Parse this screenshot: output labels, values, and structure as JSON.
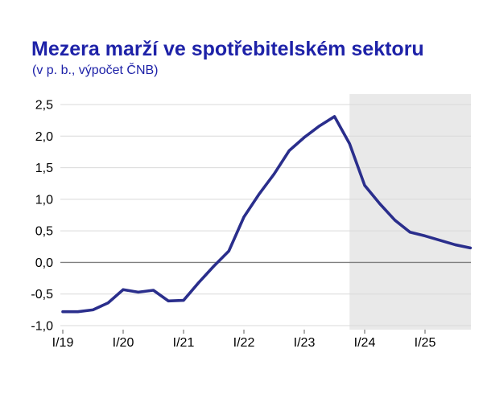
{
  "header": {
    "title": "Mezera marží ve spotřebitelském sektoru",
    "subtitle": "(v p. b., výpočet ČNB)"
  },
  "colors": {
    "title": "#1E22A8",
    "subtitle": "#1E22A8",
    "line": "#2A2E8C",
    "grid": "#D9D9D9",
    "zero_line": "#808080",
    "forecast_shade": "#E9E9E9",
    "axis_text": "#000000",
    "tick_mark": "#595959"
  },
  "chart_data": {
    "type": "line",
    "title": "Mezera marží ve spotřebitelském sektoru",
    "subtitle": "(v p. b., výpočet ČNB)",
    "xlabel": "",
    "ylabel": "",
    "grid": true,
    "legend": false,
    "ylim": [
      -1.0,
      2.5
    ],
    "ytick_step": 0.5,
    "x": [
      "I/19",
      "II/19",
      "III/19",
      "IV/19",
      "I/20",
      "II/20",
      "III/20",
      "IV/20",
      "I/21",
      "II/21",
      "III/21",
      "IV/21",
      "I/22",
      "II/22",
      "III/22",
      "IV/22",
      "I/23",
      "II/23",
      "III/23",
      "IV/23",
      "I/24",
      "II/24",
      "III/24",
      "IV/24",
      "I/25",
      "II/25",
      "III/25",
      "IV/25"
    ],
    "series": [
      {
        "name": "Mezera marží ve spotřebitelském sektoru (v p. b.)",
        "values": [
          -0.78,
          -0.78,
          -0.75,
          -0.64,
          -0.43,
          -0.47,
          -0.44,
          -0.61,
          -0.6,
          -0.32,
          -0.06,
          0.18,
          0.72,
          1.08,
          1.4,
          1.77,
          1.98,
          2.16,
          2.31,
          1.88,
          1.22,
          0.93,
          0.67,
          0.48,
          0.42,
          0.35,
          0.28,
          0.23
        ]
      }
    ],
    "forecast_start_index": 19,
    "forecast_region_note": "shaded forecast band from IV/23 to end",
    "yticks": [
      {
        "value": 2.5,
        "label": "2,5"
      },
      {
        "value": 2.0,
        "label": "2,0"
      },
      {
        "value": 1.5,
        "label": "1,5"
      },
      {
        "value": 1.0,
        "label": "1,0"
      },
      {
        "value": 0.5,
        "label": "0,5"
      },
      {
        "value": 0.0,
        "label": "0,0"
      },
      {
        "value": -0.5,
        "label": "-0,5"
      },
      {
        "value": -1.0,
        "label": "-1,0"
      }
    ],
    "xticks": [
      {
        "index": 0,
        "label": "I/19"
      },
      {
        "index": 4,
        "label": "I/20"
      },
      {
        "index": 8,
        "label": "I/21"
      },
      {
        "index": 12,
        "label": "I/22"
      },
      {
        "index": 16,
        "label": "I/23"
      },
      {
        "index": 20,
        "label": "I/24"
      },
      {
        "index": 24,
        "label": "I/25"
      }
    ]
  }
}
